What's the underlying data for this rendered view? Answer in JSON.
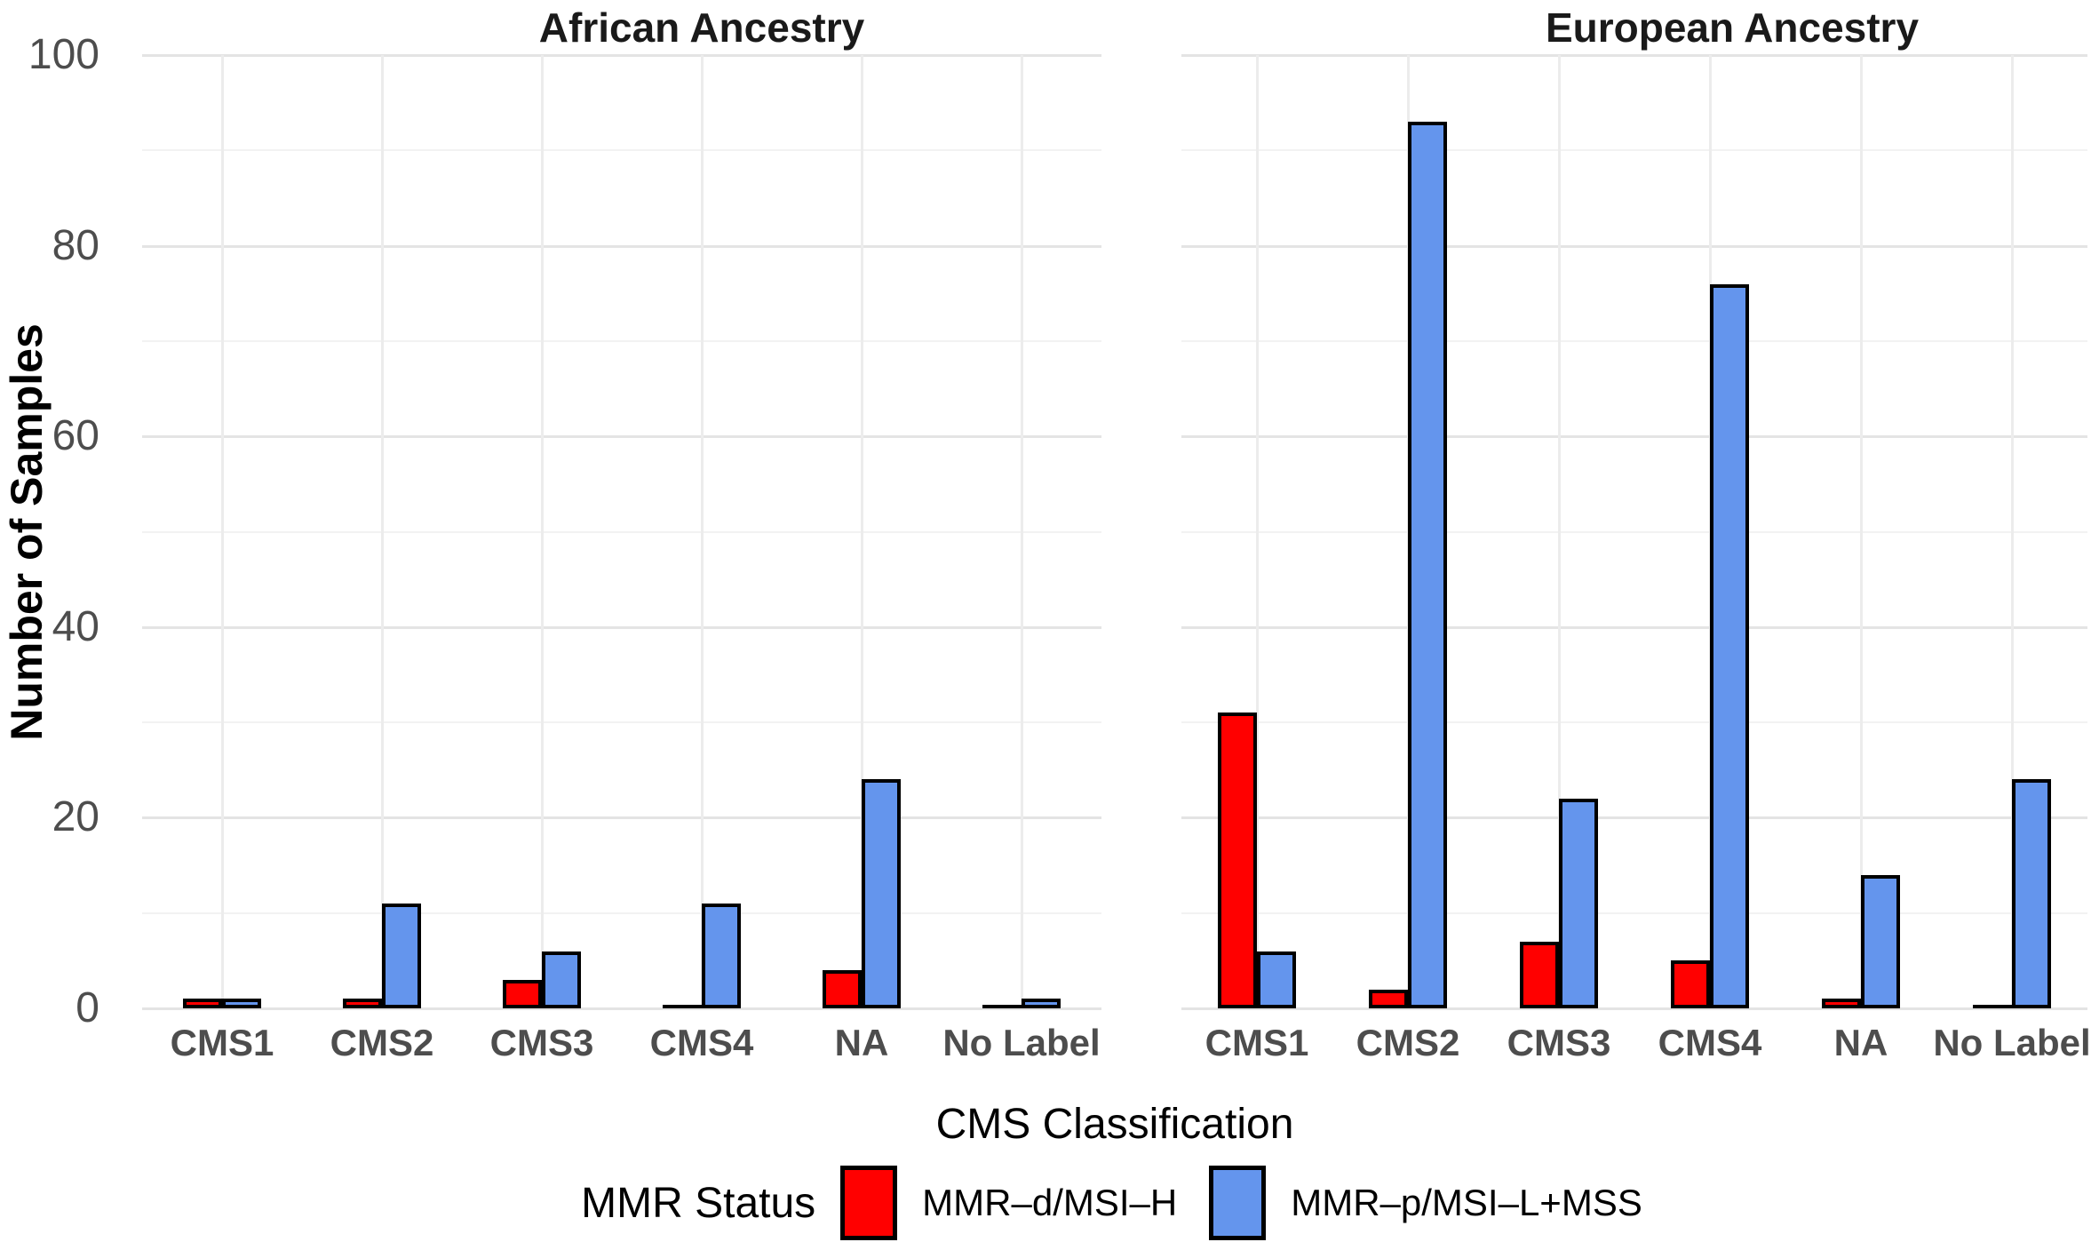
{
  "figure": {
    "y_axis_title": "Number of Samples",
    "x_axis_title": "CMS Classification"
  },
  "legend": {
    "title": "MMR Status",
    "items": [
      {
        "label": "MMR–d/MSI–H",
        "color": "#ff0000"
      },
      {
        "label": "MMR–p/MSI–L+MSS",
        "color": "#6495ed"
      }
    ]
  },
  "colors": {
    "mmr_d": "#ff0000",
    "mmr_p": "#6495ed",
    "bar_outline": "#000000",
    "grid_major": "#e4e4e4",
    "grid_minor": "#f2f2f2",
    "grid_vertical": "#ececec",
    "axis_text": "#4d4d4d",
    "title_text": "#1a1a1a"
  },
  "chart_data": {
    "type": "bar",
    "grouping": "dodged",
    "categories": [
      "CMS1",
      "CMS2",
      "CMS3",
      "CMS4",
      "NA",
      "No Label"
    ],
    "xlabel": "CMS Classification",
    "ylabel": "Number of Samples",
    "ylim": [
      0,
      100
    ],
    "yticks": [
      0,
      20,
      40,
      60,
      80,
      100
    ],
    "minor_yticks": [
      10,
      30,
      50,
      70,
      90
    ],
    "grid": "on",
    "legend_position": "bottom",
    "legend_title": "MMR Status",
    "facets": [
      {
        "title": "African Ancestry",
        "series": [
          {
            "name": "MMR–d/MSI–H",
            "color": "#ff0000",
            "values": [
              1,
              1,
              3,
              0,
              4,
              0
            ]
          },
          {
            "name": "MMR–p/MSI–L+MSS",
            "color": "#6495ed",
            "values": [
              1,
              11,
              6,
              11,
              24,
              1
            ]
          }
        ]
      },
      {
        "title": "European Ancestry",
        "series": [
          {
            "name": "MMR–d/MSI–H",
            "color": "#ff0000",
            "values": [
              31,
              2,
              7,
              5,
              1,
              0
            ]
          },
          {
            "name": "MMR–p/MSI–L+MSS",
            "color": "#6495ed",
            "values": [
              6,
              93,
              22,
              76,
              14,
              24
            ]
          }
        ]
      }
    ]
  }
}
